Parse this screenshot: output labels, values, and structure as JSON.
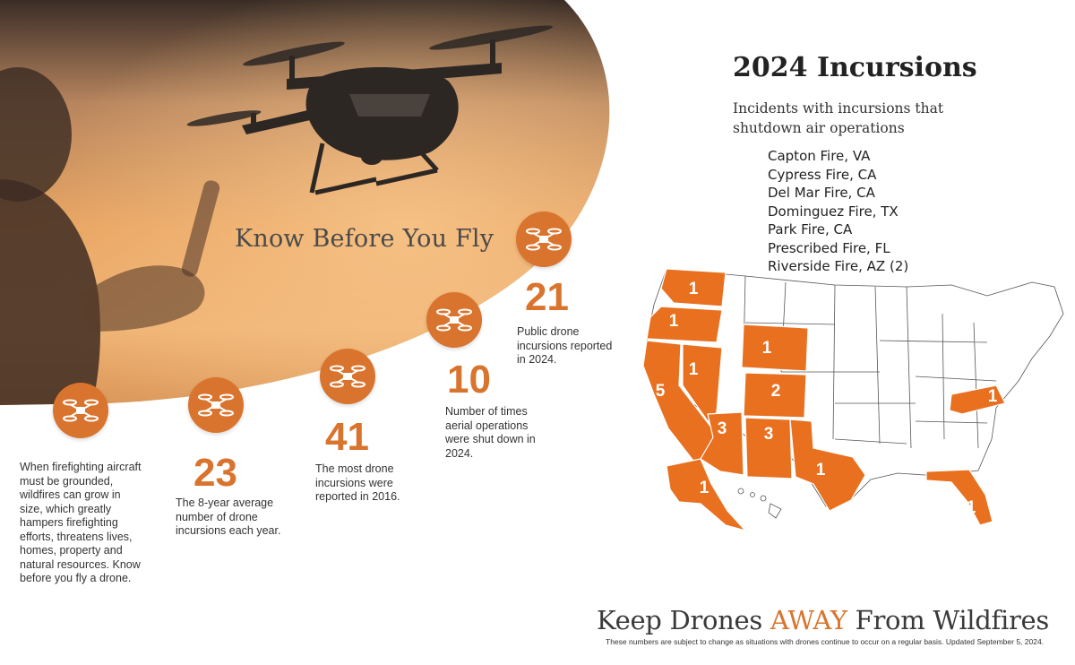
{
  "header": {
    "title": "Know Before You Fly"
  },
  "stats": [
    {
      "number": "",
      "text": "When firefighting aircraft must be grounded, wildfires can grow in size, which greatly hampers firefighting efforts, threatens lives, homes, property and natural resources. Know before you fly a drone."
    },
    {
      "number": "23",
      "text": "The 8-year average number of drone incursions each year."
    },
    {
      "number": "41",
      "text": "The most drone incursions were reported in 2016."
    },
    {
      "number": "10",
      "text": "Number of times aerial operations were shut down in 2024."
    },
    {
      "number": "21",
      "text": "Public drone incursions reported in 2024."
    }
  ],
  "incursions": {
    "title": "2024 Incursions",
    "subtitle": "Incidents with incursions that shutdown air operations",
    "list": [
      "Capton Fire, VA",
      "Cypress Fire, CA",
      "Del Mar Fire, CA",
      "Dominguez Fire, TX",
      "Park Fire, CA",
      "Prescribed Fire, FL",
      "Riverside Fire, AZ (2)"
    ]
  },
  "map": {
    "states": [
      {
        "state": "WA",
        "count": "1"
      },
      {
        "state": "OR",
        "count": "1"
      },
      {
        "state": "CA",
        "count": "5"
      },
      {
        "state": "NV",
        "count": "1"
      },
      {
        "state": "WY",
        "count": "1"
      },
      {
        "state": "CO",
        "count": "2"
      },
      {
        "state": "AZ",
        "count": "3"
      },
      {
        "state": "NM",
        "count": "3"
      },
      {
        "state": "TX",
        "count": "1"
      },
      {
        "state": "VA",
        "count": "1"
      },
      {
        "state": "FL",
        "count": "1"
      },
      {
        "state": "AK",
        "count": "1"
      }
    ]
  },
  "footer": {
    "tagline_pre": "Keep Drones ",
    "tagline_away": "AWAY",
    "tagline_post": " From Wildfires",
    "disclaimer": "These numbers are subject to change as situations with drones continue to occur on a regular basis. Updated September 5, 2024."
  },
  "colors": {
    "accent": "#d9742e",
    "highlight_state": "#e8701f",
    "text": "#333333"
  },
  "icons": [
    "drone-icon"
  ]
}
